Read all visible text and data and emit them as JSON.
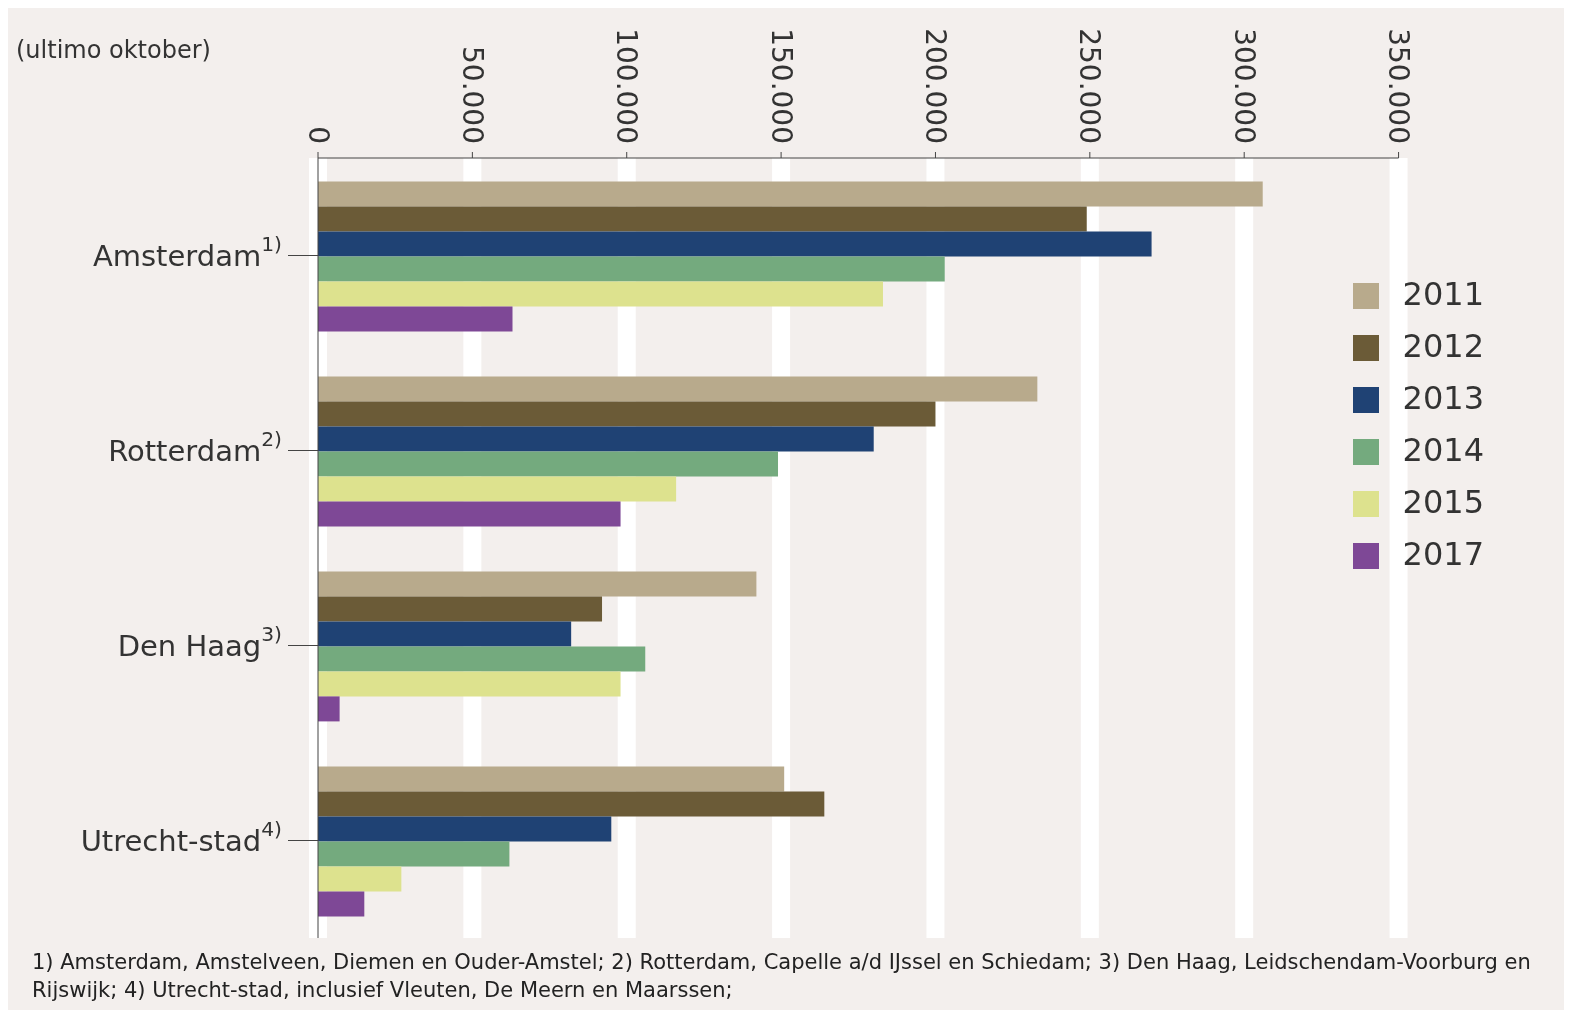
{
  "chart_data": {
    "type": "bar",
    "orientation": "horizontal",
    "title": "(ultimo oktober)",
    "categories": [
      "Amsterdam$^{1)}$",
      "Rotterdam$^{2)}$",
      "Den Haag$^{3)}$",
      "Utrecht-stad$^{4)}$"
    ],
    "series": [
      {
        "name": "2011",
        "color": "#b8aa8c",
        "values": [
          306000,
          233000,
          142000,
          151000
        ]
      },
      {
        "name": "2012",
        "color": "#6b5b37",
        "values": [
          249000,
          200000,
          92000,
          164000
        ]
      },
      {
        "name": "2013",
        "color": "#1f4274",
        "values": [
          270000,
          180000,
          82000,
          95000
        ]
      },
      {
        "name": "2014",
        "color": "#74aa7e",
        "values": [
          203000,
          149000,
          106000,
          62000
        ]
      },
      {
        "name": "2015",
        "color": "#dde28e",
        "values": [
          183000,
          116000,
          98000,
          27000
        ]
      },
      {
        "name": "2017",
        "color": "#7e4896",
        "values": [
          63000,
          98000,
          7000,
          15000
        ]
      }
    ],
    "xlim": [
      0,
      350000
    ],
    "xticks": [
      {
        "value": 0,
        "label": "0"
      },
      {
        "value": 50000,
        "label": "50.000"
      },
      {
        "value": 100000,
        "label": "100.000"
      },
      {
        "value": 150000,
        "label": "150.000"
      },
      {
        "value": 200000,
        "label": "200.000"
      },
      {
        "value": 250000,
        "label": "250.000"
      },
      {
        "value": 300000,
        "label": "300.000"
      },
      {
        "value": 350000,
        "label": "350.000"
      }
    ],
    "grid": "x",
    "legend": "right",
    "annotations": [
      "1) Amsterdam, Amstelveen, Diemen en Ouder-Amstel; 2) Rotterdam, Capelle a/d IJssel en Schiedam; 3) Den Haag, Leidschendam-Voorburg en Rijswijk; 4) Utrecht-stad, inclusief Vleuten, De Meern en Maarssen;"
    ]
  }
}
